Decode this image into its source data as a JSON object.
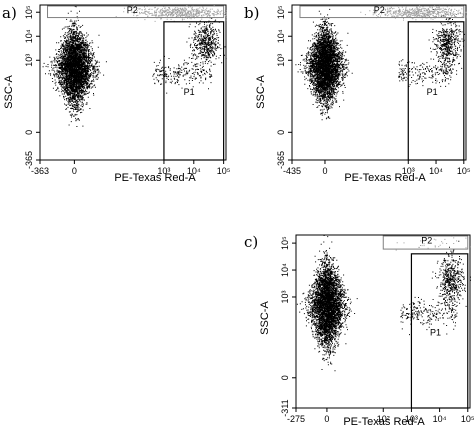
{
  "chart_data": [
    {
      "type": "scatter",
      "panel_letter": "a)",
      "xlabel": "PE-Texas Red-A",
      "ylabel": "SSC-A",
      "x_scale": "biexponential",
      "y_scale": "biexponential",
      "x_ticks": [
        "-363",
        "0",
        "10³",
        "10⁴",
        "10⁵"
      ],
      "y_ticks": [
        "-365",
        "0",
        "10³",
        "10⁴",
        "10⁵"
      ],
      "xlim": [
        -363,
        120000
      ],
      "ylim": [
        -365,
        200000
      ],
      "grid": false,
      "gates": [
        {
          "name": "P1",
          "x_range": [
            1000,
            100000
          ],
          "y_range": [
            -365,
            40000
          ],
          "outline_color": "#000000"
        },
        {
          "name": "P2",
          "x_range": [
            -100,
            100000
          ],
          "y_range": [
            60000,
            200000
          ],
          "outline_color": "#808080"
        }
      ],
      "populations": [
        {
          "description": "main cluster",
          "x_center": 0,
          "y_center": 500,
          "events": "dense",
          "color": "#000000"
        },
        {
          "description": "P1 cluster",
          "x_center": 25000,
          "y_center": 5000,
          "events": "moderate",
          "color": "#000000"
        },
        {
          "description": "P2 cluster",
          "x_center": 3000,
          "y_center": 100000,
          "events": "moderate",
          "color": "#a0a0a0"
        }
      ]
    },
    {
      "type": "scatter",
      "panel_letter": "b)",
      "xlabel": "PE-Texas Red-A",
      "ylabel": "SSC-A",
      "x_scale": "biexponential",
      "y_scale": "biexponential",
      "x_ticks": [
        "-435",
        "0",
        "10³",
        "10⁴",
        "10⁵"
      ],
      "y_ticks": [
        "-365",
        "0",
        "10³",
        "10⁴",
        "10⁵"
      ],
      "xlim": [
        -435,
        120000
      ],
      "ylim": [
        -365,
        200000
      ],
      "grid": false,
      "gates": [
        {
          "name": "P1",
          "x_range": [
            1000,
            100000
          ],
          "y_range": [
            -365,
            40000
          ],
          "outline_color": "#000000"
        },
        {
          "name": "P2",
          "x_range": [
            -100,
            100000
          ],
          "y_range": [
            60000,
            200000
          ],
          "outline_color": "#808080"
        }
      ],
      "populations": [
        {
          "description": "main cluster",
          "x_center": 0,
          "y_center": 600,
          "events": "dense",
          "color": "#000000"
        },
        {
          "description": "P1 cluster",
          "x_center": 25000,
          "y_center": 5000,
          "events": "moderate",
          "color": "#000000"
        },
        {
          "description": "P2 cluster",
          "x_center": 3000,
          "y_center": 100000,
          "events": "moderate",
          "color": "#a0a0a0"
        }
      ]
    },
    {
      "type": "scatter",
      "panel_letter": "c)",
      "xlabel": "PE-Texas Red-A",
      "ylabel": "SSC-A",
      "x_scale": "biexponential",
      "y_scale": "biexponential",
      "x_ticks": [
        "-275",
        "0",
        "10²",
        "10³",
        "10⁴",
        "10⁵"
      ],
      "y_ticks": [
        "-311",
        "0",
        "10³",
        "10⁴",
        "10⁵"
      ],
      "xlim": [
        -275,
        120000
      ],
      "ylim": [
        -311,
        200000
      ],
      "grid": false,
      "gates": [
        {
          "name": "P1",
          "x_range": [
            1000,
            100000
          ],
          "y_range": [
            -311,
            40000
          ],
          "outline_color": "#000000"
        },
        {
          "name": "P2",
          "x_range": [
            100,
            100000
          ],
          "y_range": [
            60000,
            200000
          ],
          "outline_color": "#808080"
        }
      ],
      "populations": [
        {
          "description": "main cluster",
          "x_center": 0,
          "y_center": 500,
          "events": "dense",
          "color": "#000000"
        },
        {
          "description": "P1 cluster",
          "x_center": 25000,
          "y_center": 4000,
          "events": "moderate",
          "color": "#000000"
        },
        {
          "description": "P2 cluster",
          "x_center": 3000,
          "y_center": 100000,
          "events": "sparse",
          "color": "#a0a0a0"
        }
      ]
    }
  ]
}
